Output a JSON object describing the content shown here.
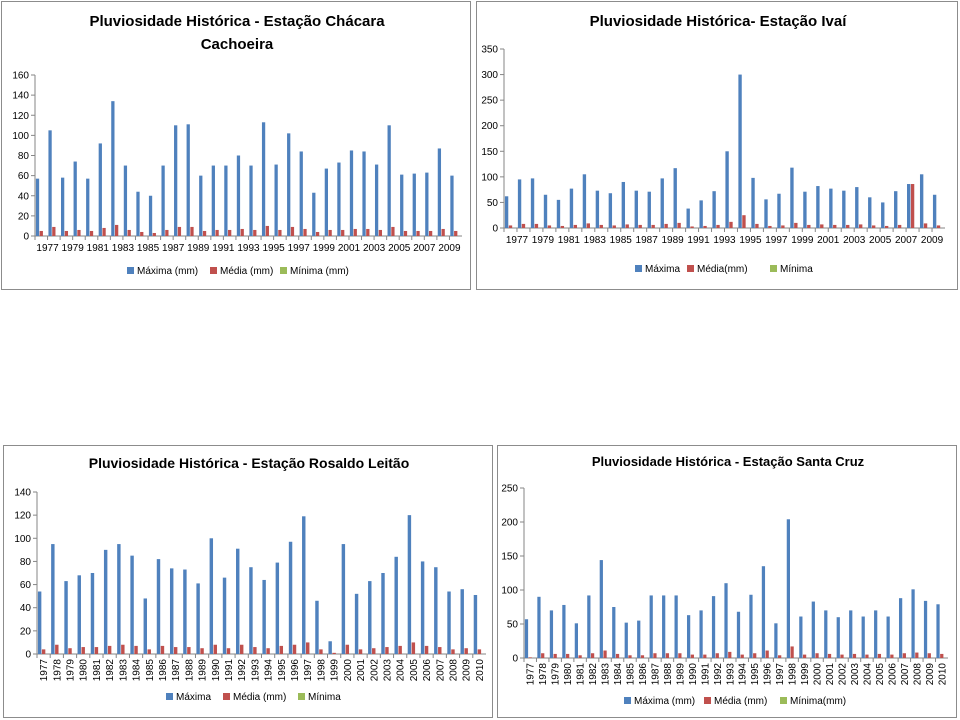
{
  "chart_data": [
    {
      "type": "bar",
      "title": "Pluviosidade Histórica - Estação Chácara Cachoeira",
      "title_lines": [
        "Pluviosidade Histórica - Estação Chácara",
        "Cachoeira"
      ],
      "categories": [
        "1977",
        "1978",
        "1979",
        "1980",
        "1981",
        "1982",
        "1983",
        "1984",
        "1985",
        "1986",
        "1987",
        "1988",
        "1989",
        "1990",
        "1991",
        "1992",
        "1993",
        "1994",
        "1995",
        "1996",
        "1997",
        "1998",
        "1999",
        "2000",
        "2001",
        "2002",
        "2003",
        "2004",
        "2005",
        "2006",
        "2007",
        "2008",
        "2009",
        "2010"
      ],
      "x_tick_labels": [
        "1977",
        "1979",
        "1981",
        "1983",
        "1985",
        "1987",
        "1989",
        "1991",
        "1993",
        "1995",
        "1997",
        "1999",
        "2001",
        "2003",
        "2005",
        "2007",
        "2009"
      ],
      "series": [
        {
          "name": "Máxima (mm)",
          "color": "#4f81bd",
          "values": [
            57,
            105,
            58,
            74,
            57,
            92,
            134,
            70,
            44,
            40,
            70,
            110,
            111,
            60,
            70,
            70,
            80,
            70,
            113,
            71,
            102,
            84,
            43,
            67,
            73,
            85,
            84,
            71,
            110,
            61,
            62,
            63,
            87,
            60
          ]
        },
        {
          "name": "Média (mm)",
          "color": "#c0504d",
          "values": [
            5,
            9,
            5,
            6,
            5,
            8,
            11,
            6,
            4,
            3,
            6,
            9,
            9,
            5,
            6,
            6,
            7,
            6,
            10,
            6,
            9,
            7,
            4,
            6,
            6,
            7,
            7,
            6,
            9,
            5,
            5,
            5,
            7,
            5
          ]
        },
        {
          "name": "Mínima (mm)",
          "color": "#9bbb59",
          "values": [
            0,
            0,
            0,
            0,
            0,
            0,
            0,
            0,
            0,
            0,
            0,
            0,
            0,
            0,
            0,
            0,
            0,
            0,
            0,
            0,
            0,
            0,
            0,
            0,
            0,
            0,
            0,
            0,
            0,
            0,
            0,
            0,
            0,
            0
          ]
        }
      ],
      "ylim": [
        0,
        160
      ],
      "y_ticks": [
        0,
        20,
        40,
        60,
        80,
        100,
        120,
        140,
        160
      ],
      "grid": false,
      "legend": "bottom"
    },
    {
      "type": "bar",
      "title": "Pluviosidade Histórica- Estação Ivaí",
      "title_lines": [
        "Pluviosidade Histórica- Estação Ivaí"
      ],
      "categories": [
        "1977",
        "1978",
        "1979",
        "1980",
        "1981",
        "1982",
        "1983",
        "1984",
        "1985",
        "1986",
        "1987",
        "1988",
        "1989",
        "1990",
        "1991",
        "1992",
        "1993",
        "1994",
        "1995",
        "1996",
        "1997",
        "1998",
        "1999",
        "2000",
        "2001",
        "2002",
        "2003",
        "2004",
        "2005",
        "2006",
        "2007",
        "2008",
        "2009",
        "2010"
      ],
      "x_tick_labels": [
        "1977",
        "1979",
        "1981",
        "1983",
        "1985",
        "1987",
        "1989",
        "1991",
        "1993",
        "1995",
        "1997",
        "1999",
        "2001",
        "2003",
        "2005",
        "2007",
        "2009"
      ],
      "series": [
        {
          "name": "Máxima",
          "color": "#4f81bd",
          "values": [
            62,
            95,
            97,
            65,
            55,
            77,
            105,
            73,
            68,
            90,
            73,
            71,
            97,
            117,
            38,
            54,
            72,
            150,
            300,
            98,
            56,
            67,
            118,
            71,
            82,
            77,
            73,
            80,
            60,
            50,
            72,
            86,
            105,
            65
          ]
        },
        {
          "name": "Média(mm)",
          "color": "#c0504d",
          "values": [
            5,
            8,
            8,
            5,
            4,
            6,
            9,
            6,
            5,
            7,
            6,
            6,
            8,
            10,
            3,
            4,
            6,
            12,
            25,
            8,
            4,
            5,
            10,
            6,
            7,
            6,
            6,
            7,
            5,
            4,
            6,
            86,
            9,
            5
          ]
        },
        {
          "name": "Mínima",
          "color": "#9bbb59",
          "values": [
            0,
            0,
            0,
            0,
            0,
            0,
            0,
            0,
            0,
            0,
            0,
            0,
            0,
            0,
            0,
            0,
            0,
            0,
            0,
            0,
            0,
            0,
            0,
            0,
            0,
            0,
            0,
            0,
            0,
            0,
            0,
            0,
            0,
            0
          ]
        }
      ],
      "ylim": [
        0,
        350
      ],
      "y_ticks": [
        0,
        50,
        100,
        150,
        200,
        250,
        300,
        350
      ],
      "grid": false,
      "legend": "bottom"
    },
    {
      "type": "bar",
      "title": "Pluviosidade Histórica - Estação Rosaldo Leitão",
      "title_lines": [
        "Pluviosidade Histórica - Estação Rosaldo Leitão"
      ],
      "categories": [
        "1977",
        "1978",
        "1979",
        "1980",
        "1981",
        "1982",
        "1983",
        "1984",
        "1985",
        "1986",
        "1987",
        "1988",
        "1989",
        "1990",
        "1991",
        "1992",
        "1993",
        "1994",
        "1995",
        "1996",
        "1997",
        "1998",
        "1999",
        "2000",
        "2001",
        "2002",
        "2003",
        "2004",
        "2005",
        "2006",
        "2007",
        "2008",
        "2009",
        "2010"
      ],
      "x_tick_labels": [
        "1977",
        "1978",
        "1979",
        "1980",
        "1981",
        "1982",
        "1983",
        "1984",
        "1985",
        "1986",
        "1987",
        "1988",
        "1989",
        "1990",
        "1991",
        "1992",
        "1993",
        "1994",
        "1995",
        "1996",
        "1997",
        "1998",
        "1999",
        "2000",
        "2001",
        "2002",
        "2003",
        "2004",
        "2005",
        "2006",
        "2007",
        "2008",
        "2009",
        "2010"
      ],
      "series": [
        {
          "name": "Máxima",
          "color": "#4f81bd",
          "values": [
            54,
            95,
            63,
            68,
            70,
            90,
            95,
            85,
            48,
            82,
            74,
            73,
            61,
            100,
            66,
            91,
            75,
            64,
            79,
            97,
            119,
            46,
            11,
            95,
            52,
            63,
            70,
            84,
            120,
            80,
            75,
            54,
            56,
            51
          ]
        },
        {
          "name": "Média (mm)",
          "color": "#c0504d",
          "values": [
            4,
            8,
            5,
            6,
            6,
            7,
            8,
            7,
            4,
            7,
            6,
            6,
            5,
            8,
            5,
            8,
            6,
            5,
            7,
            8,
            10,
            4,
            1,
            8,
            4,
            5,
            6,
            7,
            10,
            7,
            6,
            4,
            5,
            4
          ]
        },
        {
          "name": "Mínima",
          "color": "#9bbb59",
          "values": [
            0,
            0,
            0,
            0,
            0,
            0,
            0,
            0,
            0,
            0,
            0,
            0,
            0,
            0,
            0,
            0,
            0,
            0,
            0,
            0,
            0,
            0,
            0,
            0,
            0,
            0,
            0,
            0,
            0,
            0,
            0,
            0,
            0,
            0
          ]
        }
      ],
      "ylim": [
        0,
        140
      ],
      "y_ticks": [
        0,
        20,
        40,
        60,
        80,
        100,
        120,
        140
      ],
      "grid": false,
      "legend": "bottom"
    },
    {
      "type": "bar",
      "title": "Pluviosidade Histórica - Estação Santa Cruz",
      "title_lines": [
        "Pluviosidade Histórica - Estação Santa Cruz"
      ],
      "categories": [
        "1977",
        "1978",
        "1979",
        "1980",
        "1981",
        "1982",
        "1983",
        "1984",
        "1985",
        "1986",
        "1987",
        "1988",
        "1989",
        "1990",
        "1991",
        "1992",
        "1993",
        "1994",
        "1995",
        "1996",
        "1997",
        "1998",
        "1999",
        "2000",
        "2001",
        "2002",
        "2003",
        "2004",
        "2005",
        "2006",
        "2007",
        "2008",
        "2009",
        "2010"
      ],
      "x_tick_labels": [
        "1977",
        "1978",
        "1979",
        "1980",
        "1981",
        "1982",
        "1983",
        "1984",
        "1985",
        "1986",
        "1987",
        "1988",
        "1989",
        "1990",
        "1991",
        "1992",
        "1993",
        "1994",
        "1995",
        "1996",
        "1997",
        "1998",
        "1999",
        "2000",
        "2001",
        "2002",
        "2003",
        "2004",
        "2005",
        "2006",
        "2007",
        "2008",
        "2009",
        "2010"
      ],
      "series": [
        {
          "name": "Máxima (mm)",
          "color": "#4f81bd",
          "values": [
            57,
            90,
            70,
            78,
            51,
            92,
            144,
            75,
            52,
            55,
            92,
            92,
            92,
            63,
            70,
            91,
            110,
            68,
            93,
            135,
            51,
            204,
            61,
            83,
            70,
            60,
            70,
            61,
            70,
            61,
            88,
            101,
            84,
            79
          ]
        },
        {
          "name": "Média (mm)",
          "color": "#c0504d",
          "values": [
            1,
            7,
            6,
            6,
            4,
            7,
            11,
            6,
            4,
            4,
            7,
            7,
            7,
            5,
            5,
            7,
            9,
            5,
            7,
            11,
            4,
            17,
            5,
            7,
            6,
            5,
            6,
            5,
            6,
            5,
            7,
            8,
            7,
            6
          ]
        },
        {
          "name": "Mínima(mm)",
          "color": "#9bbb59",
          "values": [
            0,
            0,
            0,
            0,
            0,
            0,
            0,
            0,
            0,
            0,
            0,
            0,
            0,
            0,
            0,
            0,
            0,
            0,
            0,
            0,
            0,
            0,
            0,
            0,
            0,
            0,
            0,
            0,
            0,
            0,
            0,
            0,
            0,
            0
          ]
        }
      ],
      "ylim": [
        0,
        250
      ],
      "y_ticks": [
        0,
        50,
        100,
        150,
        200,
        250
      ],
      "grid": false,
      "legend": "bottom"
    }
  ]
}
